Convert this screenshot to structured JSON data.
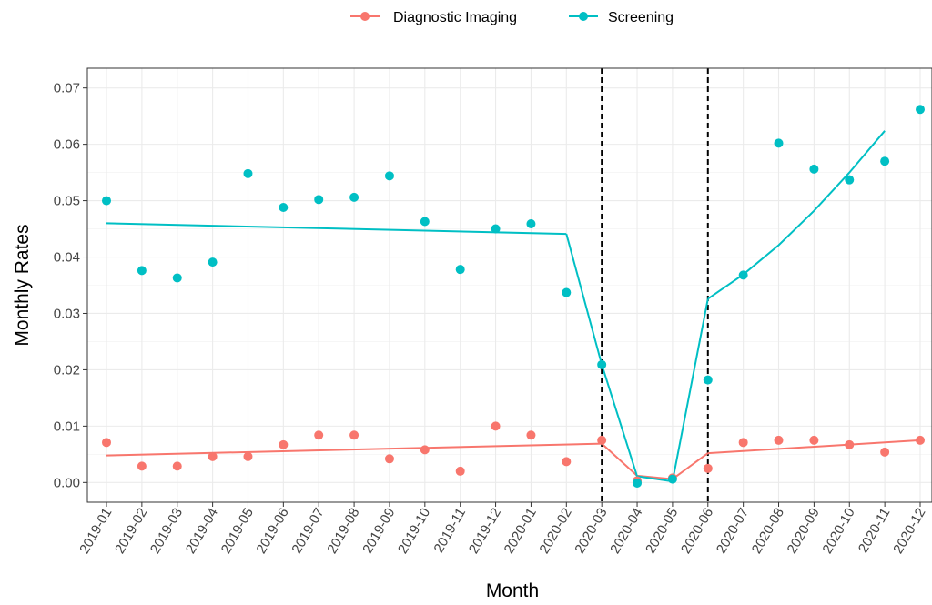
{
  "chart_data": {
    "type": "scatter",
    "xlabel": "Month",
    "ylabel": "Monthly Rates",
    "ylim": [
      -0.0035,
      0.0735
    ],
    "y_ticks": [
      0.0,
      0.01,
      0.02,
      0.03,
      0.04,
      0.05,
      0.06,
      0.07
    ],
    "y_tick_labels": [
      "0.00",
      "0.01",
      "0.02",
      "0.03",
      "0.04",
      "0.05",
      "0.06",
      "0.07"
    ],
    "categories": [
      "2019-01",
      "2019-02",
      "2019-03",
      "2019-04",
      "2019-05",
      "2019-06",
      "2019-07",
      "2019-08",
      "2019-09",
      "2019-10",
      "2019-11",
      "2019-12",
      "2020-01",
      "2020-02",
      "2020-03",
      "2020-04",
      "2020-05",
      "2020-06",
      "2020-07",
      "2020-08",
      "2020-09",
      "2020-10",
      "2020-11",
      "2020-12"
    ],
    "vlines": [
      "2020-03",
      "2020-06"
    ],
    "grid": true,
    "legend_position": "top",
    "series": [
      {
        "name": "Diagnostic Imaging",
        "color": "#F8766D",
        "points": [
          0.0071,
          0.0029,
          0.0029,
          0.0046,
          0.0046,
          0.0067,
          0.0084,
          0.0084,
          0.0042,
          0.0058,
          0.002,
          0.01,
          0.0084,
          0.0037,
          0.0075,
          0.0003,
          0.0008,
          0.0025,
          0.0071,
          0.0075,
          0.0075,
          0.0067,
          0.0054,
          0.0075
        ],
        "fit_segments": [
          {
            "x": [
              "2019-01",
              "2020-03"
            ],
            "y": [
              0.0048,
              0.0069
            ]
          },
          {
            "x": [
              "2020-03",
              "2020-04",
              "2020-05",
              "2020-06"
            ],
            "y": [
              0.0069,
              0.0012,
              0.0006,
              0.0052
            ]
          },
          {
            "x": [
              "2020-06",
              "2020-12"
            ],
            "y": [
              0.0052,
              0.0075
            ]
          }
        ]
      },
      {
        "name": "Screening",
        "color": "#00BFC4",
        "points": [
          0.05,
          0.0376,
          0.0363,
          0.0391,
          0.0548,
          0.0488,
          0.0502,
          0.0506,
          0.0544,
          0.0463,
          0.0378,
          0.045,
          0.0459,
          0.0337,
          0.0209,
          -0.0001,
          0.0006,
          0.0182,
          0.0368,
          0.0602,
          0.0556,
          0.0537,
          0.057,
          0.0662
        ],
        "fit_segments": [
          {
            "x": [
              "2019-01",
              "2020-02"
            ],
            "y": [
              0.046,
              0.0441
            ]
          },
          {
            "x": [
              "2020-02",
              "2020-03",
              "2020-04",
              "2020-05",
              "2020-06"
            ],
            "y": [
              0.0441,
              0.0209,
              0.0011,
              0.0002,
              0.0326
            ]
          },
          {
            "x": [
              "2020-06",
              "2020-07",
              "2020-08",
              "2020-09",
              "2020-10",
              "2020-11"
            ],
            "y": [
              0.0326,
              0.0369,
              0.0421,
              0.0482,
              0.055,
              0.0624
            ]
          }
        ]
      }
    ]
  }
}
